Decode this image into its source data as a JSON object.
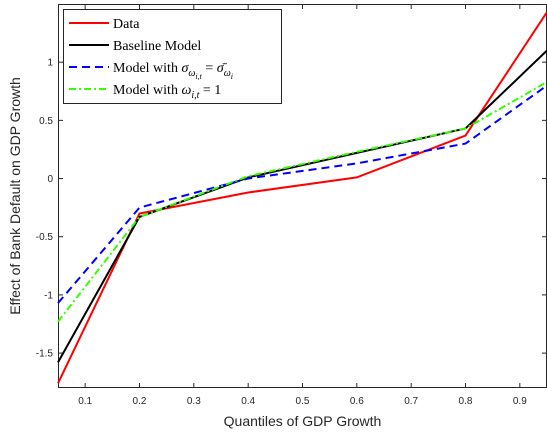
{
  "chart_data": {
    "type": "line",
    "xlabel": "Quantiles of GDP Growth",
    "ylabel": "Effect of Bank Default on GDP Growth",
    "xlim": [
      0.05,
      0.95
    ],
    "ylim": [
      -1.8,
      1.5
    ],
    "xticks": [
      0.1,
      0.2,
      0.3,
      0.4,
      0.5,
      0.6,
      0.7,
      0.8,
      0.9
    ],
    "xtick_labels": [
      "0.1",
      "0.2",
      "0.3",
      "0.4",
      "0.5",
      "0.6",
      "0.7",
      "0.8",
      "0.9"
    ],
    "yticks": [
      -1.5,
      -1,
      -0.5,
      0,
      0.5,
      1
    ],
    "ytick_labels": [
      "-1.5",
      "-1",
      "-0.5",
      "0",
      "0.5",
      "1"
    ],
    "grid": false,
    "legend_position": "top-left",
    "series": [
      {
        "name": "Data",
        "color": "#ff0000",
        "dash": "solid",
        "x": [
          0.05,
          0.2,
          0.4,
          0.6,
          0.8,
          0.95
        ],
        "y": [
          -1.76,
          -0.3,
          -0.12,
          0.01,
          0.37,
          1.43
        ]
      },
      {
        "name": "Baseline Model",
        "color": "#000000",
        "dash": "solid",
        "x": [
          0.05,
          0.2,
          0.4,
          0.6,
          0.8,
          0.95
        ],
        "y": [
          -1.58,
          -0.33,
          0.01,
          0.22,
          0.43,
          1.1
        ]
      },
      {
        "name": "Model with σ_{ω_{i,t}} = σ̄_{ω_i}",
        "color": "#0000ff",
        "dash": "dashed",
        "x": [
          0.05,
          0.2,
          0.4,
          0.6,
          0.8,
          0.95
        ],
        "y": [
          -1.07,
          -0.25,
          0.0,
          0.13,
          0.3,
          0.8
        ]
      },
      {
        "name": "Model with ω_{i,t} = 1",
        "color": "#33ff00",
        "dash": "dashdot",
        "x": [
          0.05,
          0.2,
          0.4,
          0.6,
          0.8,
          0.95
        ],
        "y": [
          -1.23,
          -0.33,
          0.02,
          0.23,
          0.43,
          0.83
        ]
      }
    ]
  },
  "legend": {
    "entries": [
      {
        "base": "Data",
        "math": []
      },
      {
        "base": "Baseline Model",
        "math": []
      },
      {
        "base": "Model with ",
        "math": [
          {
            "t": "σ",
            "italic": true
          },
          {
            "t": "ω",
            "italic": true,
            "sub": true
          },
          {
            "t": "i,t",
            "italic": true,
            "subsub": true
          },
          {
            "t": " = "
          },
          {
            "t": "σ̄",
            "italic": true
          },
          {
            "t": "ω",
            "italic": true,
            "sub": true
          },
          {
            "t": "i",
            "italic": true,
            "subsub": true
          }
        ]
      },
      {
        "base": "Model with ",
        "math": [
          {
            "t": "ω",
            "italic": true
          },
          {
            "t": "i,t",
            "italic": true,
            "sub": true
          },
          {
            "t": " = 1"
          }
        ]
      }
    ]
  }
}
